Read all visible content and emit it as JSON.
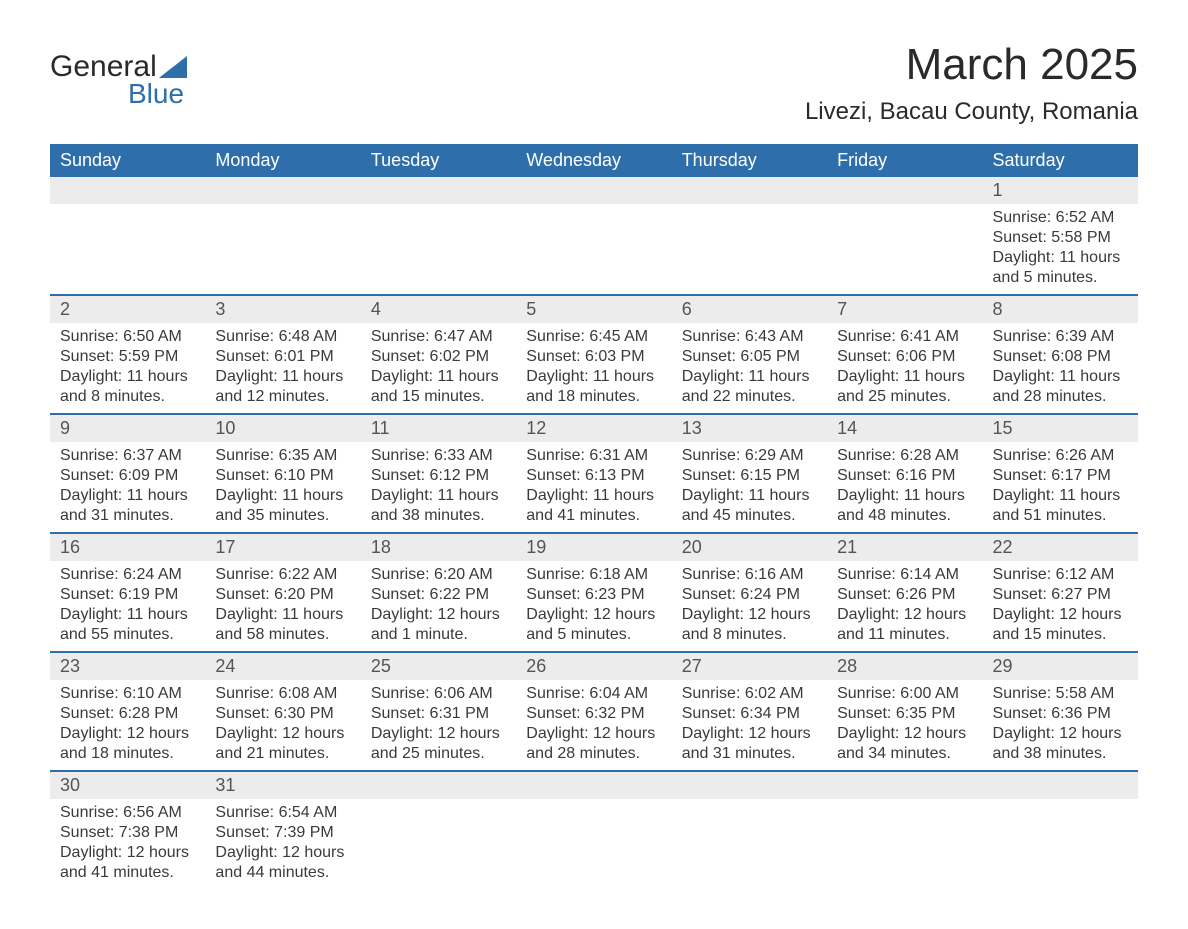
{
  "logo": {
    "text_general": "General",
    "text_blue": "Blue",
    "triangle_color": "#2e6fab"
  },
  "title": "March 2025",
  "subtitle": "Livezi, Bacau County, Romania",
  "colors": {
    "header_bg": "#2e6fab",
    "header_text": "#ffffff",
    "daynum_bg": "#ececec",
    "border": "#2e6fab",
    "text": "#3a3a3a"
  },
  "weekdays": [
    "Sunday",
    "Monday",
    "Tuesday",
    "Wednesday",
    "Thursday",
    "Friday",
    "Saturday"
  ],
  "weeks": [
    [
      null,
      null,
      null,
      null,
      null,
      null,
      {
        "d": "1",
        "sr": "Sunrise: 6:52 AM",
        "ss": "Sunset: 5:58 PM",
        "dl1": "Daylight: 11 hours",
        "dl2": "and 5 minutes."
      }
    ],
    [
      {
        "d": "2",
        "sr": "Sunrise: 6:50 AM",
        "ss": "Sunset: 5:59 PM",
        "dl1": "Daylight: 11 hours",
        "dl2": "and 8 minutes."
      },
      {
        "d": "3",
        "sr": "Sunrise: 6:48 AM",
        "ss": "Sunset: 6:01 PM",
        "dl1": "Daylight: 11 hours",
        "dl2": "and 12 minutes."
      },
      {
        "d": "4",
        "sr": "Sunrise: 6:47 AM",
        "ss": "Sunset: 6:02 PM",
        "dl1": "Daylight: 11 hours",
        "dl2": "and 15 minutes."
      },
      {
        "d": "5",
        "sr": "Sunrise: 6:45 AM",
        "ss": "Sunset: 6:03 PM",
        "dl1": "Daylight: 11 hours",
        "dl2": "and 18 minutes."
      },
      {
        "d": "6",
        "sr": "Sunrise: 6:43 AM",
        "ss": "Sunset: 6:05 PM",
        "dl1": "Daylight: 11 hours",
        "dl2": "and 22 minutes."
      },
      {
        "d": "7",
        "sr": "Sunrise: 6:41 AM",
        "ss": "Sunset: 6:06 PM",
        "dl1": "Daylight: 11 hours",
        "dl2": "and 25 minutes."
      },
      {
        "d": "8",
        "sr": "Sunrise: 6:39 AM",
        "ss": "Sunset: 6:08 PM",
        "dl1": "Daylight: 11 hours",
        "dl2": "and 28 minutes."
      }
    ],
    [
      {
        "d": "9",
        "sr": "Sunrise: 6:37 AM",
        "ss": "Sunset: 6:09 PM",
        "dl1": "Daylight: 11 hours",
        "dl2": "and 31 minutes."
      },
      {
        "d": "10",
        "sr": "Sunrise: 6:35 AM",
        "ss": "Sunset: 6:10 PM",
        "dl1": "Daylight: 11 hours",
        "dl2": "and 35 minutes."
      },
      {
        "d": "11",
        "sr": "Sunrise: 6:33 AM",
        "ss": "Sunset: 6:12 PM",
        "dl1": "Daylight: 11 hours",
        "dl2": "and 38 minutes."
      },
      {
        "d": "12",
        "sr": "Sunrise: 6:31 AM",
        "ss": "Sunset: 6:13 PM",
        "dl1": "Daylight: 11 hours",
        "dl2": "and 41 minutes."
      },
      {
        "d": "13",
        "sr": "Sunrise: 6:29 AM",
        "ss": "Sunset: 6:15 PM",
        "dl1": "Daylight: 11 hours",
        "dl2": "and 45 minutes."
      },
      {
        "d": "14",
        "sr": "Sunrise: 6:28 AM",
        "ss": "Sunset: 6:16 PM",
        "dl1": "Daylight: 11 hours",
        "dl2": "and 48 minutes."
      },
      {
        "d": "15",
        "sr": "Sunrise: 6:26 AM",
        "ss": "Sunset: 6:17 PM",
        "dl1": "Daylight: 11 hours",
        "dl2": "and 51 minutes."
      }
    ],
    [
      {
        "d": "16",
        "sr": "Sunrise: 6:24 AM",
        "ss": "Sunset: 6:19 PM",
        "dl1": "Daylight: 11 hours",
        "dl2": "and 55 minutes."
      },
      {
        "d": "17",
        "sr": "Sunrise: 6:22 AM",
        "ss": "Sunset: 6:20 PM",
        "dl1": "Daylight: 11 hours",
        "dl2": "and 58 minutes."
      },
      {
        "d": "18",
        "sr": "Sunrise: 6:20 AM",
        "ss": "Sunset: 6:22 PM",
        "dl1": "Daylight: 12 hours",
        "dl2": "and 1 minute."
      },
      {
        "d": "19",
        "sr": "Sunrise: 6:18 AM",
        "ss": "Sunset: 6:23 PM",
        "dl1": "Daylight: 12 hours",
        "dl2": "and 5 minutes."
      },
      {
        "d": "20",
        "sr": "Sunrise: 6:16 AM",
        "ss": "Sunset: 6:24 PM",
        "dl1": "Daylight: 12 hours",
        "dl2": "and 8 minutes."
      },
      {
        "d": "21",
        "sr": "Sunrise: 6:14 AM",
        "ss": "Sunset: 6:26 PM",
        "dl1": "Daylight: 12 hours",
        "dl2": "and 11 minutes."
      },
      {
        "d": "22",
        "sr": "Sunrise: 6:12 AM",
        "ss": "Sunset: 6:27 PM",
        "dl1": "Daylight: 12 hours",
        "dl2": "and 15 minutes."
      }
    ],
    [
      {
        "d": "23",
        "sr": "Sunrise: 6:10 AM",
        "ss": "Sunset: 6:28 PM",
        "dl1": "Daylight: 12 hours",
        "dl2": "and 18 minutes."
      },
      {
        "d": "24",
        "sr": "Sunrise: 6:08 AM",
        "ss": "Sunset: 6:30 PM",
        "dl1": "Daylight: 12 hours",
        "dl2": "and 21 minutes."
      },
      {
        "d": "25",
        "sr": "Sunrise: 6:06 AM",
        "ss": "Sunset: 6:31 PM",
        "dl1": "Daylight: 12 hours",
        "dl2": "and 25 minutes."
      },
      {
        "d": "26",
        "sr": "Sunrise: 6:04 AM",
        "ss": "Sunset: 6:32 PM",
        "dl1": "Daylight: 12 hours",
        "dl2": "and 28 minutes."
      },
      {
        "d": "27",
        "sr": "Sunrise: 6:02 AM",
        "ss": "Sunset: 6:34 PM",
        "dl1": "Daylight: 12 hours",
        "dl2": "and 31 minutes."
      },
      {
        "d": "28",
        "sr": "Sunrise: 6:00 AM",
        "ss": "Sunset: 6:35 PM",
        "dl1": "Daylight: 12 hours",
        "dl2": "and 34 minutes."
      },
      {
        "d": "29",
        "sr": "Sunrise: 5:58 AM",
        "ss": "Sunset: 6:36 PM",
        "dl1": "Daylight: 12 hours",
        "dl2": "and 38 minutes."
      }
    ],
    [
      {
        "d": "30",
        "sr": "Sunrise: 6:56 AM",
        "ss": "Sunset: 7:38 PM",
        "dl1": "Daylight: 12 hours",
        "dl2": "and 41 minutes."
      },
      {
        "d": "31",
        "sr": "Sunrise: 6:54 AM",
        "ss": "Sunset: 7:39 PM",
        "dl1": "Daylight: 12 hours",
        "dl2": "and 44 minutes."
      },
      null,
      null,
      null,
      null,
      null
    ]
  ]
}
